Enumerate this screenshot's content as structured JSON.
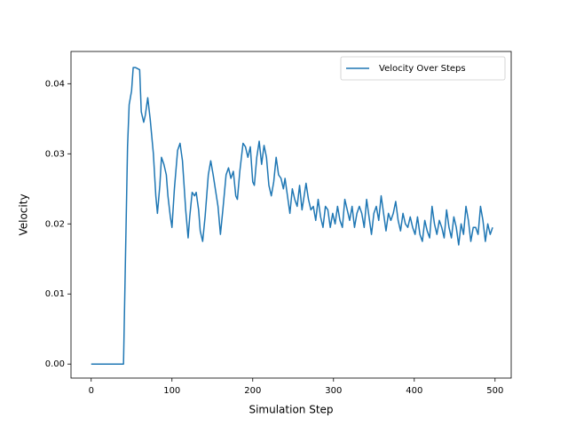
{
  "chart_data": {
    "type": "line",
    "xlabel": "Simulation Step",
    "ylabel": "Velocity",
    "x": [
      0,
      40,
      45,
      47,
      50,
      52,
      55,
      60,
      62,
      65,
      67,
      70,
      73,
      77,
      80,
      82,
      85,
      87,
      90,
      93,
      95,
      98,
      100,
      103,
      107,
      110,
      113,
      117,
      120,
      122,
      125,
      128,
      130,
      133,
      135,
      138,
      141,
      145,
      148,
      151,
      155,
      157,
      160,
      163,
      167,
      170,
      173,
      176,
      179,
      181,
      184,
      188,
      191,
      194,
      197,
      200,
      202,
      205,
      208,
      211,
      214,
      217,
      220,
      223,
      226,
      229,
      232,
      235,
      238,
      240,
      243,
      246,
      249,
      252,
      255,
      258,
      261,
      263,
      266,
      269,
      272,
      275,
      278,
      281,
      284,
      287,
      290,
      293,
      296,
      299,
      302,
      305,
      308,
      311,
      314,
      317,
      320,
      323,
      326,
      329,
      332,
      335,
      338,
      341,
      344,
      347,
      350,
      353,
      356,
      359,
      362,
      365,
      368,
      371,
      374,
      377,
      380,
      383,
      386,
      389,
      392,
      395,
      398,
      401,
      404,
      407,
      410,
      413,
      416,
      419,
      422,
      425,
      428,
      431,
      434,
      437,
      440,
      443,
      446,
      449,
      452,
      455,
      458,
      461,
      464,
      467,
      470,
      473,
      476,
      479,
      482,
      485,
      488,
      491,
      494,
      497
    ],
    "series": [
      {
        "name": "Velocity Over Steps",
        "color": "#1f77b4",
        "values": [
          0,
          0,
          0.031,
          0.037,
          0.039,
          0.0423,
          0.0423,
          0.042,
          0.036,
          0.0345,
          0.0355,
          0.038,
          0.035,
          0.03,
          0.024,
          0.0215,
          0.0255,
          0.0295,
          0.0285,
          0.027,
          0.024,
          0.021,
          0.0195,
          0.025,
          0.0305,
          0.0315,
          0.029,
          0.022,
          0.018,
          0.021,
          0.0245,
          0.024,
          0.0245,
          0.022,
          0.019,
          0.0175,
          0.021,
          0.027,
          0.029,
          0.027,
          0.024,
          0.0225,
          0.0185,
          0.022,
          0.027,
          0.028,
          0.0265,
          0.0275,
          0.024,
          0.0235,
          0.0275,
          0.0315,
          0.031,
          0.0295,
          0.031,
          0.026,
          0.0255,
          0.0295,
          0.0318,
          0.0285,
          0.0312,
          0.0295,
          0.0255,
          0.024,
          0.026,
          0.0295,
          0.027,
          0.0265,
          0.025,
          0.0265,
          0.024,
          0.0215,
          0.025,
          0.0235,
          0.0225,
          0.0255,
          0.022,
          0.0235,
          0.0258,
          0.0235,
          0.022,
          0.0225,
          0.0205,
          0.0235,
          0.021,
          0.0195,
          0.0225,
          0.022,
          0.0195,
          0.0215,
          0.02,
          0.0225,
          0.0205,
          0.0195,
          0.0235,
          0.022,
          0.0205,
          0.0225,
          0.0195,
          0.0215,
          0.0225,
          0.0215,
          0.0195,
          0.0235,
          0.021,
          0.0185,
          0.0215,
          0.0225,
          0.0205,
          0.024,
          0.0215,
          0.019,
          0.0215,
          0.0205,
          0.0215,
          0.0232,
          0.0205,
          0.019,
          0.0215,
          0.02,
          0.0195,
          0.021,
          0.0195,
          0.0185,
          0.021,
          0.0185,
          0.0175,
          0.0205,
          0.019,
          0.018,
          0.0225,
          0.02,
          0.0185,
          0.0205,
          0.0195,
          0.018,
          0.022,
          0.0195,
          0.018,
          0.021,
          0.0195,
          0.017,
          0.02,
          0.0185,
          0.0225,
          0.0205,
          0.0175,
          0.0195,
          0.0195,
          0.0185,
          0.0225,
          0.0205,
          0.0175,
          0.02,
          0.0185,
          0.0195
        ]
      }
    ],
    "xlim": [
      -25,
      520
    ],
    "xticks": [
      0,
      100,
      200,
      300,
      400,
      500
    ],
    "ylim": [
      -0.002,
      0.0446
    ],
    "yticks": [
      {
        "value": 0,
        "label": "0.00"
      },
      {
        "value": 0.01,
        "label": "0.01"
      },
      {
        "value": 0.02,
        "label": "0.02"
      },
      {
        "value": 0.03,
        "label": "0.03"
      },
      {
        "value": 0.04,
        "label": "0.04"
      }
    ],
    "legend": "upper right"
  }
}
